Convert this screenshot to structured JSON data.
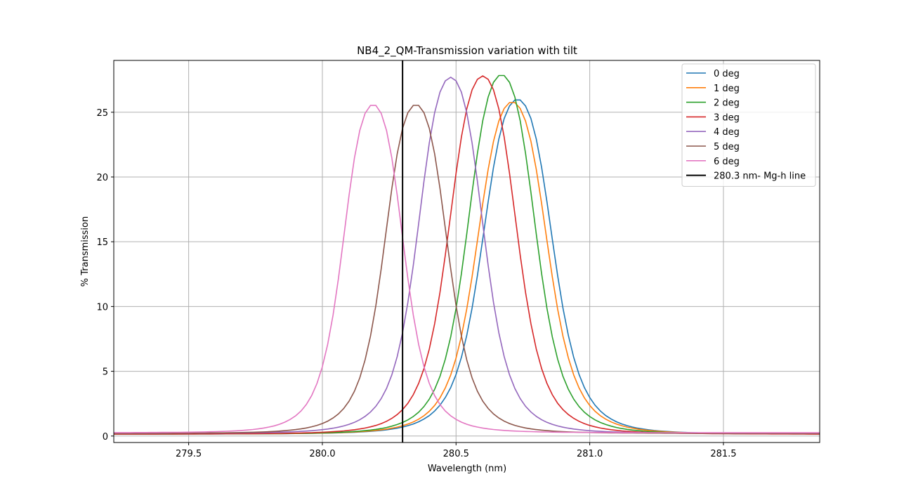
{
  "chart_data": {
    "type": "line",
    "title": "NB4_2_QM-Transmission variation with tilt",
    "xlabel": "Wavelength (nm)",
    "ylabel": "% Transmission",
    "xlim": [
      279.22,
      281.86
    ],
    "ylim": [
      -0.5,
      29.0
    ],
    "xticks": [
      279.5,
      280.0,
      280.5,
      281.0,
      281.5
    ],
    "xtick_labels": [
      "279.5",
      "280.0",
      "280.5",
      "281.0",
      "281.5"
    ],
    "yticks": [
      0,
      5,
      10,
      15,
      20,
      25
    ],
    "ytick_labels": [
      "0",
      "5",
      "10",
      "15",
      "20",
      "25"
    ],
    "grid": true,
    "legend_position": "top-right",
    "series": [
      {
        "name": "0 deg",
        "color": "#1f77b4",
        "center": 280.73,
        "peak": 26.0,
        "halfwidth": 0.145,
        "baseline": 0.15
      },
      {
        "name": "1 deg",
        "color": "#ff7f0e",
        "center": 280.71,
        "peak": 25.8,
        "halfwidth": 0.145,
        "baseline": 0.15
      },
      {
        "name": "2 deg",
        "color": "#2ca02c",
        "center": 280.67,
        "peak": 27.9,
        "halfwidth": 0.14,
        "baseline": 0.15
      },
      {
        "name": "3 deg",
        "color": "#d62728",
        "center": 280.6,
        "peak": 27.8,
        "halfwidth": 0.14,
        "baseline": 0.15
      },
      {
        "name": "4 deg",
        "color": "#9467bd",
        "center": 280.48,
        "peak": 27.7,
        "halfwidth": 0.135,
        "baseline": 0.2
      },
      {
        "name": "5 deg",
        "color": "#8c564b",
        "center": 280.35,
        "peak": 25.6,
        "halfwidth": 0.13,
        "baseline": 0.2
      },
      {
        "name": "6 deg",
        "color": "#e377c2",
        "center": 280.19,
        "peak": 25.6,
        "halfwidth": 0.125,
        "baseline": 0.25
      }
    ],
    "vline": {
      "name": "280.3 nm- Mg-h line",
      "x": 280.3,
      "color": "#000000"
    }
  }
}
